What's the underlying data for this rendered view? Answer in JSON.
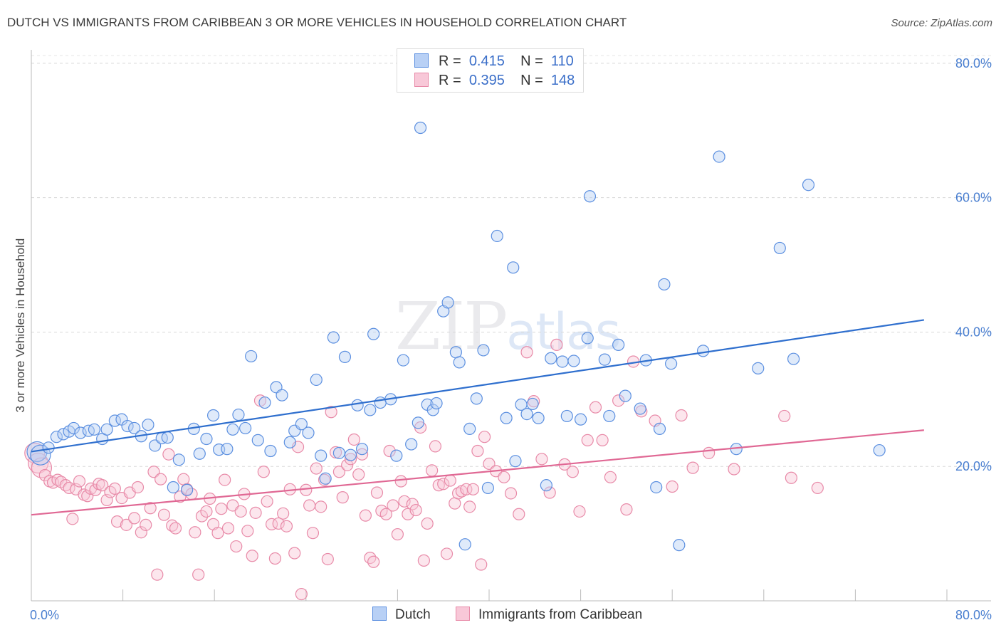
{
  "title": "DUTCH VS IMMIGRANTS FROM CARIBBEAN 3 OR MORE VEHICLES IN HOUSEHOLD CORRELATION CHART",
  "source": "Source: ZipAtlas.com",
  "watermark": {
    "zip": "ZIP",
    "atlas": "atlas"
  },
  "legend": {
    "rows": [
      {
        "r_label": "R =",
        "r_value": "0.415",
        "n_label": "N =",
        "n_value": "110"
      },
      {
        "r_label": "R =",
        "r_value": "0.395",
        "n_label": "N =",
        "n_value": "148"
      }
    ]
  },
  "bottom_legend": [
    "Dutch",
    "Immigrants from Caribbean"
  ],
  "colors": {
    "blue": "#5b8fe0",
    "blue_fill": "#b8d0f5",
    "blue_line": "#2f6fce",
    "pink": "#e88aa8",
    "pink_fill": "#f8c8d8",
    "pink_line": "#e06894"
  },
  "chart_data": {
    "type": "scatter",
    "ylabel": "3 or more Vehicles in Household",
    "xlim": [
      0,
      80
    ],
    "ylim": [
      0,
      82
    ],
    "x_ticks": [
      "0.0%",
      "80.0%"
    ],
    "y_ticks": [
      {
        "v": 20,
        "label": "20.0%"
      },
      {
        "v": 40,
        "label": "40.0%"
      },
      {
        "v": 60,
        "label": "60.0%"
      },
      {
        "v": 80,
        "label": "80.0%"
      }
    ],
    "grid": true,
    "series": [
      {
        "name": "Dutch",
        "trend": [
          [
            0,
            22.2
          ],
          [
            78,
            41.8
          ]
        ],
        "points": [
          [
            0.5,
            22.2
          ],
          [
            0.8,
            21.7
          ],
          [
            1.5,
            22.8
          ],
          [
            2.2,
            24.4
          ],
          [
            2.8,
            24.8
          ],
          [
            3.3,
            25.2
          ],
          [
            3.7,
            25.7
          ],
          [
            4.3,
            25.0
          ],
          [
            5.0,
            25.3
          ],
          [
            5.5,
            25.5
          ],
          [
            6.2,
            24.1
          ],
          [
            6.6,
            25.5
          ],
          [
            7.3,
            26.8
          ],
          [
            7.9,
            27.0
          ],
          [
            8.4,
            26.0
          ],
          [
            9.0,
            25.7
          ],
          [
            9.6,
            24.5
          ],
          [
            10.2,
            26.2
          ],
          [
            10.8,
            23.1
          ],
          [
            11.4,
            24.2
          ],
          [
            11.9,
            24.3
          ],
          [
            12.4,
            16.9
          ],
          [
            12.9,
            21.0
          ],
          [
            13.6,
            16.5
          ],
          [
            14.2,
            25.6
          ],
          [
            14.7,
            21.9
          ],
          [
            15.3,
            24.1
          ],
          [
            15.9,
            27.6
          ],
          [
            16.4,
            22.5
          ],
          [
            17.1,
            22.6
          ],
          [
            17.6,
            25.5
          ],
          [
            18.1,
            27.7
          ],
          [
            18.7,
            25.7
          ],
          [
            19.2,
            36.4
          ],
          [
            19.8,
            23.9
          ],
          [
            20.4,
            29.5
          ],
          [
            20.9,
            22.3
          ],
          [
            21.4,
            31.8
          ],
          [
            21.9,
            30.6
          ],
          [
            22.6,
            23.6
          ],
          [
            23.0,
            25.3
          ],
          [
            23.6,
            26.3
          ],
          [
            24.2,
            25.0
          ],
          [
            24.9,
            32.9
          ],
          [
            25.3,
            21.6
          ],
          [
            25.7,
            18.2
          ],
          [
            26.4,
            39.2
          ],
          [
            26.9,
            22.0
          ],
          [
            27.4,
            36.3
          ],
          [
            27.9,
            21.7
          ],
          [
            28.5,
            29.1
          ],
          [
            28.9,
            22.6
          ],
          [
            29.6,
            28.4
          ],
          [
            29.9,
            39.7
          ],
          [
            30.5,
            29.5
          ],
          [
            31.4,
            30.0
          ],
          [
            31.9,
            21.6
          ],
          [
            32.5,
            35.8
          ],
          [
            33.2,
            23.3
          ],
          [
            33.8,
            26.5
          ],
          [
            34.0,
            70.4
          ],
          [
            34.6,
            29.2
          ],
          [
            35.1,
            28.4
          ],
          [
            35.4,
            29.4
          ],
          [
            36.0,
            43.1
          ],
          [
            36.4,
            44.4
          ],
          [
            37.1,
            37.0
          ],
          [
            37.4,
            35.5
          ],
          [
            37.9,
            8.4
          ],
          [
            38.3,
            25.6
          ],
          [
            38.9,
            30.1
          ],
          [
            39.5,
            37.3
          ],
          [
            39.9,
            16.8
          ],
          [
            40.7,
            54.3
          ],
          [
            41.5,
            27.2
          ],
          [
            42.1,
            49.6
          ],
          [
            42.3,
            20.8
          ],
          [
            42.8,
            29.2
          ],
          [
            43.3,
            27.8
          ],
          [
            43.8,
            29.3
          ],
          [
            44.3,
            27.2
          ],
          [
            45.0,
            17.2
          ],
          [
            45.4,
            36.1
          ],
          [
            46.4,
            35.6
          ],
          [
            46.8,
            27.5
          ],
          [
            47.4,
            35.7
          ],
          [
            48.0,
            27.0
          ],
          [
            48.6,
            39.1
          ],
          [
            48.8,
            60.2
          ],
          [
            50.1,
            35.9
          ],
          [
            50.5,
            27.5
          ],
          [
            51.3,
            38.1
          ],
          [
            51.9,
            30.5
          ],
          [
            53.2,
            28.6
          ],
          [
            53.7,
            35.8
          ],
          [
            54.6,
            16.9
          ],
          [
            54.9,
            25.6
          ],
          [
            55.3,
            47.1
          ],
          [
            55.9,
            35.3
          ],
          [
            56.6,
            8.3
          ],
          [
            58.7,
            37.2
          ],
          [
            60.1,
            66.1
          ],
          [
            61.6,
            22.6
          ],
          [
            63.5,
            34.6
          ],
          [
            65.4,
            52.5
          ],
          [
            66.6,
            36.0
          ],
          [
            67.9,
            61.9
          ],
          [
            74.1,
            22.4
          ]
        ]
      },
      {
        "name": "Immigrants from Caribbean",
        "trend": [
          [
            0,
            12.8
          ],
          [
            78,
            25.4
          ]
        ],
        "points": [
          [
            0.3,
            22.0
          ],
          [
            0.6,
            20.5
          ],
          [
            0.9,
            19.8
          ],
          [
            1.2,
            18.7
          ],
          [
            1.6,
            17.8
          ],
          [
            1.9,
            17.6
          ],
          [
            2.3,
            18.0
          ],
          [
            2.6,
            17.7
          ],
          [
            3.0,
            17.2
          ],
          [
            3.3,
            16.8
          ],
          [
            3.6,
            12.2
          ],
          [
            3.9,
            16.6
          ],
          [
            4.2,
            17.8
          ],
          [
            4.6,
            15.8
          ],
          [
            4.9,
            15.6
          ],
          [
            5.2,
            16.7
          ],
          [
            5.6,
            16.5
          ],
          [
            5.9,
            17.4
          ],
          [
            6.2,
            17.2
          ],
          [
            6.6,
            15.0
          ],
          [
            6.9,
            16.2
          ],
          [
            7.3,
            16.7
          ],
          [
            7.5,
            11.8
          ],
          [
            7.9,
            15.3
          ],
          [
            8.3,
            11.3
          ],
          [
            8.6,
            16.1
          ],
          [
            9.0,
            12.3
          ],
          [
            9.3,
            16.9
          ],
          [
            9.6,
            10.2
          ],
          [
            10.0,
            11.3
          ],
          [
            10.4,
            13.8
          ],
          [
            10.7,
            19.2
          ],
          [
            11.0,
            3.9
          ],
          [
            11.3,
            18.1
          ],
          [
            11.6,
            12.8
          ],
          [
            12.0,
            21.8
          ],
          [
            12.3,
            11.2
          ],
          [
            12.6,
            10.8
          ],
          [
            13.0,
            15.5
          ],
          [
            13.3,
            18.1
          ],
          [
            13.6,
            16.6
          ],
          [
            14.0,
            15.9
          ],
          [
            14.3,
            10.2
          ],
          [
            14.6,
            3.9
          ],
          [
            14.9,
            12.6
          ],
          [
            15.3,
            13.3
          ],
          [
            15.6,
            15.2
          ],
          [
            15.9,
            11.4
          ],
          [
            16.3,
            10.1
          ],
          [
            16.6,
            13.7
          ],
          [
            16.9,
            18.0
          ],
          [
            17.2,
            10.8
          ],
          [
            17.6,
            14.2
          ],
          [
            17.9,
            8.1
          ],
          [
            18.3,
            13.3
          ],
          [
            18.6,
            15.9
          ],
          [
            18.9,
            10.4
          ],
          [
            19.3,
            6.7
          ],
          [
            19.6,
            13.1
          ],
          [
            20.0,
            29.8
          ],
          [
            20.3,
            19.2
          ],
          [
            20.6,
            14.8
          ],
          [
            21.0,
            11.4
          ],
          [
            21.3,
            6.3
          ],
          [
            21.6,
            11.5
          ],
          [
            22.0,
            13.0
          ],
          [
            22.3,
            11.1
          ],
          [
            22.6,
            16.6
          ],
          [
            23.0,
            7.1
          ],
          [
            23.3,
            22.9
          ],
          [
            23.6,
            1.0
          ],
          [
            24.0,
            16.5
          ],
          [
            24.3,
            14.2
          ],
          [
            24.6,
            10.1
          ],
          [
            24.9,
            19.7
          ],
          [
            25.3,
            14.0
          ],
          [
            25.6,
            18.0
          ],
          [
            25.9,
            6.2
          ],
          [
            26.2,
            28.1
          ],
          [
            26.6,
            22.1
          ],
          [
            26.9,
            19.2
          ],
          [
            27.2,
            15.4
          ],
          [
            27.6,
            20.2
          ],
          [
            27.9,
            21.1
          ],
          [
            28.2,
            24.0
          ],
          [
            28.6,
            18.8
          ],
          [
            28.9,
            21.8
          ],
          [
            29.2,
            12.7
          ],
          [
            29.6,
            6.4
          ],
          [
            29.9,
            5.8
          ],
          [
            30.2,
            16.1
          ],
          [
            30.6,
            13.4
          ],
          [
            31.0,
            12.9
          ],
          [
            31.3,
            22.3
          ],
          [
            31.6,
            14.2
          ],
          [
            32.0,
            9.9
          ],
          [
            32.3,
            17.8
          ],
          [
            32.6,
            14.8
          ],
          [
            32.9,
            12.9
          ],
          [
            33.3,
            14.4
          ],
          [
            33.6,
            13.5
          ],
          [
            34.0,
            25.8
          ],
          [
            34.3,
            6.0
          ],
          [
            34.6,
            11.5
          ],
          [
            35.0,
            19.4
          ],
          [
            35.3,
            23.0
          ],
          [
            35.6,
            17.2
          ],
          [
            36.0,
            17.4
          ],
          [
            36.3,
            7.0
          ],
          [
            36.6,
            17.9
          ],
          [
            37.0,
            14.5
          ],
          [
            37.3,
            16.0
          ],
          [
            37.6,
            16.3
          ],
          [
            38.0,
            16.6
          ],
          [
            38.3,
            14.0
          ],
          [
            38.6,
            16.6
          ],
          [
            39.0,
            22.3
          ],
          [
            39.3,
            5.4
          ],
          [
            39.6,
            24.4
          ],
          [
            40.0,
            20.4
          ],
          [
            40.6,
            19.3
          ],
          [
            41.3,
            18.4
          ],
          [
            41.9,
            16.0
          ],
          [
            42.6,
            12.9
          ],
          [
            43.3,
            37.0
          ],
          [
            43.9,
            29.7
          ],
          [
            44.6,
            21.1
          ],
          [
            45.3,
            16.1
          ],
          [
            45.9,
            38.1
          ],
          [
            46.6,
            20.3
          ],
          [
            47.3,
            19.2
          ],
          [
            47.9,
            13.3
          ],
          [
            48.6,
            23.9
          ],
          [
            49.3,
            28.8
          ],
          [
            49.9,
            23.9
          ],
          [
            50.6,
            18.4
          ],
          [
            51.3,
            29.8
          ],
          [
            52.0,
            13.6
          ],
          [
            52.6,
            35.6
          ],
          [
            53.3,
            28.2
          ],
          [
            54.5,
            26.8
          ],
          [
            56.0,
            17.0
          ],
          [
            56.8,
            27.6
          ],
          [
            57.8,
            19.8
          ],
          [
            59.2,
            22.0
          ],
          [
            61.4,
            19.6
          ],
          [
            65.8,
            27.5
          ],
          [
            66.4,
            18.3
          ],
          [
            68.7,
            16.8
          ]
        ]
      }
    ]
  }
}
